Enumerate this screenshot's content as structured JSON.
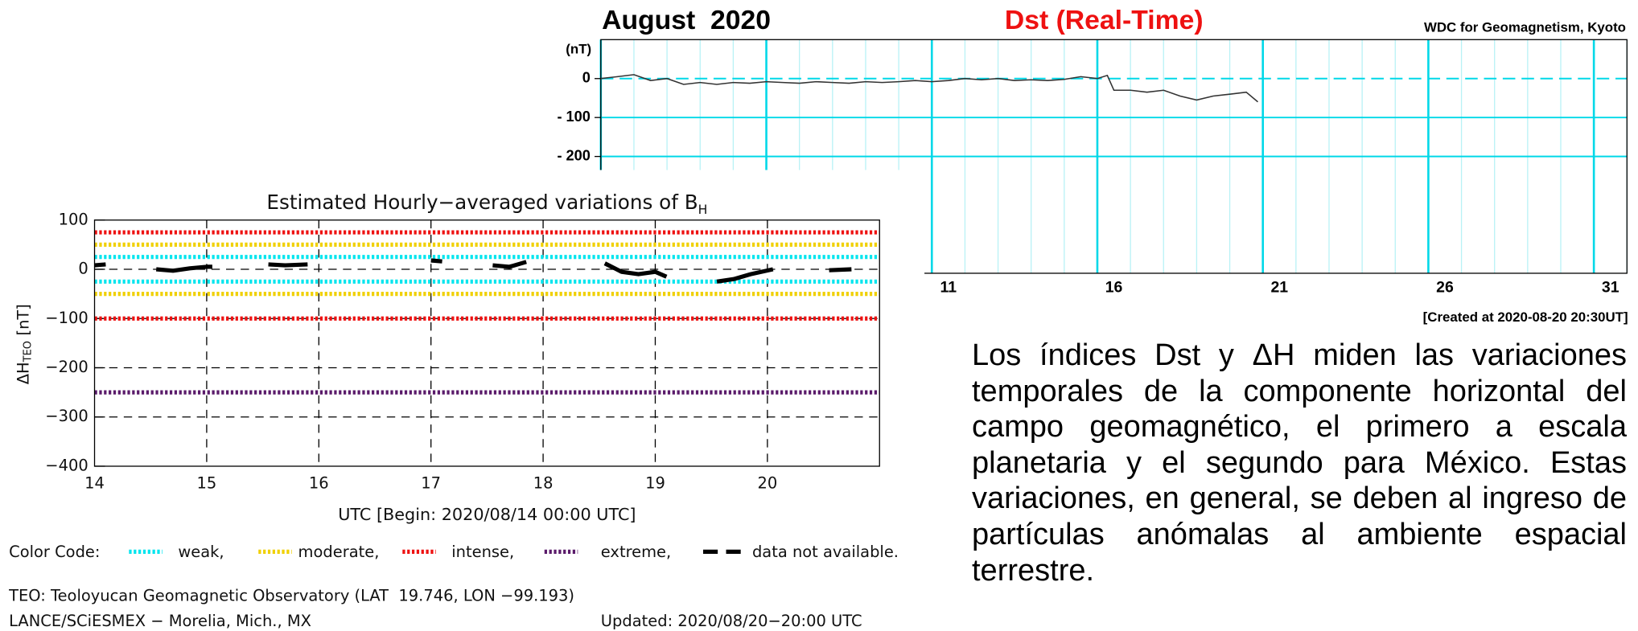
{
  "chart_data": [
    {
      "type": "line",
      "title": "August  2020",
      "subtitle": "Dst (Real-Time)",
      "source": "WDC for Geomagnetism, Kyoto",
      "note": "[Created at 2020-08-20 20:30UT]",
      "ylabel": "(nT)",
      "xlim": [
        1,
        32
      ],
      "xticks": [
        {
          "value": 11.5,
          "label": "11"
        },
        {
          "value": 16.5,
          "label": "16"
        },
        {
          "value": 21.5,
          "label": "21"
        },
        {
          "value": 26.5,
          "label": "26"
        },
        {
          "value": 31.5,
          "label": "31"
        }
      ],
      "ylim": [
        -500,
        100
      ],
      "yticks": [
        0,
        {
          "value": -100,
          "label": "- 100"
        },
        {
          "value": -200,
          "label": "- 200"
        }
      ],
      "grid": true,
      "x": [
        1,
        1.5,
        2,
        2.5,
        3,
        3.5,
        4,
        4.5,
        5,
        5.5,
        6,
        6.5,
        7,
        7.5,
        8,
        8.5,
        9,
        9.5,
        10,
        10.5,
        11,
        11.5,
        12,
        12.5,
        13,
        13.5,
        14,
        14.5,
        15,
        15.5,
        16,
        16.3,
        16.5,
        17,
        17.5,
        18,
        18.5,
        19,
        19.5,
        20,
        20.5,
        20.85
      ],
      "series": [
        {
          "color": "#333333",
          "values": [
            0,
            5,
            10,
            -5,
            0,
            -15,
            -10,
            -15,
            -10,
            -12,
            -8,
            -10,
            -12,
            -8,
            -10,
            -12,
            -8,
            -10,
            -8,
            -5,
            -8,
            -5,
            0,
            -3,
            0,
            -5,
            -3,
            -5,
            -2,
            5,
            0,
            8,
            -30,
            -30,
            -35,
            -30,
            -45,
            -55,
            -45,
            -40,
            -35,
            -60
          ]
        }
      ]
    },
    {
      "type": "line",
      "title": "Estimated Hourly−averaged variations of B",
      "title_sub": "H",
      "ylabel": "ΔH",
      "ylabel_sub": "TEO",
      "ylabel_unit": "[nT]",
      "xlabel": "UTC [Begin: 2020/08/14 00:00 UTC]",
      "xlim": [
        14,
        21
      ],
      "xticks": [
        14,
        15,
        16,
        17,
        18,
        19,
        20
      ],
      "ylim": [
        -400,
        100
      ],
      "yticks": [
        100,
        0,
        {
          "value": -100,
          "label": "−100"
        },
        {
          "value": -200,
          "label": "−200"
        },
        {
          "value": -300,
          "label": "−300"
        },
        {
          "value": -400,
          "label": "−400"
        }
      ],
      "legend_title": "Color Code:",
      "legend": [
        {
          "name": "weak,",
          "color": "#00e5ee",
          "levels": [
            25,
            -25
          ]
        },
        {
          "name": "moderate,",
          "color": "#f0d000",
          "levels": [
            50,
            -50
          ]
        },
        {
          "name": "intense,",
          "color": "#ee1111",
          "levels": [
            75,
            -100
          ]
        },
        {
          "name": "extreme,",
          "color": "#5a1a6a",
          "levels": [
            -250
          ]
        },
        {
          "name": "data not available.",
          "color": "#000000"
        }
      ],
      "x": [
        14,
        14.1,
        14.3,
        14.55,
        14.7,
        14.85,
        15.0,
        15.05,
        15.3,
        15.55,
        15.7,
        15.9,
        16.5,
        17.0,
        17.1,
        17.3,
        17.55,
        17.7,
        17.85,
        18.2,
        18.55,
        18.7,
        18.85,
        19.0,
        19.1,
        19.3,
        19.55,
        19.7,
        19.85,
        20.05,
        20.3,
        20.55,
        20.75
      ],
      "series": [
        {
          "color": "#000000",
          "values": [
            8,
            10,
            null,
            0,
            -3,
            2,
            5,
            5,
            null,
            10,
            8,
            10,
            null,
            18,
            16,
            null,
            8,
            5,
            15,
            null,
            12,
            -5,
            -10,
            -5,
            -15,
            null,
            -25,
            -20,
            -10,
            0,
            null,
            -2,
            0
          ]
        }
      ],
      "footer": [
        "TEO: Teoloyucan Geomagnetic Observatory (LAT  19.746, LON −99.193)",
        "LANCE/SCiESMEX − Morelia, Mich., MX",
        "Updated: 2020/08/20−20:00 UTC"
      ]
    }
  ],
  "text": "Los índices Dst y ΔH miden las variaciones temporales de la componente horizontal del campo geomagnético, el primero a escala planetaria y el segundo para México. Estas variaciones, en general, se deben al ingreso de partículas anómalas al ambiente espacial terrestre."
}
